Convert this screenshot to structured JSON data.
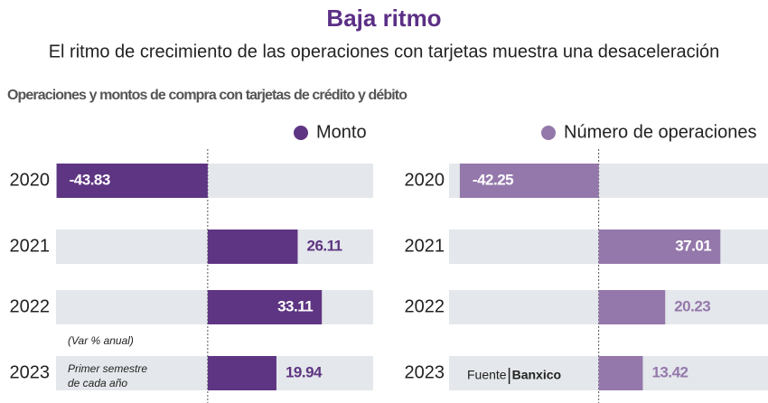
{
  "header": {
    "title": "Baja ritmo",
    "subtitle": "El ritmo de crecimiento de las operaciones con tarjetas muestra una desaceleración",
    "section": "Operaciones y montos de compra con tarjetas de crédito y débito"
  },
  "chart_data": [
    {
      "type": "bar",
      "orientation": "horizontal",
      "categories": [
        "2020",
        "2021",
        "2022",
        "2023"
      ],
      "series": [
        {
          "name": "Monto",
          "color": "#5e3582",
          "values": [
            -43.83,
            26.11,
            33.11,
            19.94
          ]
        }
      ],
      "xlim": [
        -44,
        48
      ],
      "note": "(Var % anual)",
      "note_lines": [
        "Primer semestre",
        "de cada año"
      ]
    },
    {
      "type": "bar",
      "orientation": "horizontal",
      "categories": [
        "2020",
        "2021",
        "2022",
        "2023"
      ],
      "series": [
        {
          "name": "Número de operaciones",
          "color": "#9478ab",
          "values": [
            -42.25,
            37.01,
            20.23,
            13.42
          ]
        }
      ],
      "xlim": [
        -42.5,
        51.5
      ]
    }
  ],
  "source": "Fuente",
  "source_name": "Banxico"
}
